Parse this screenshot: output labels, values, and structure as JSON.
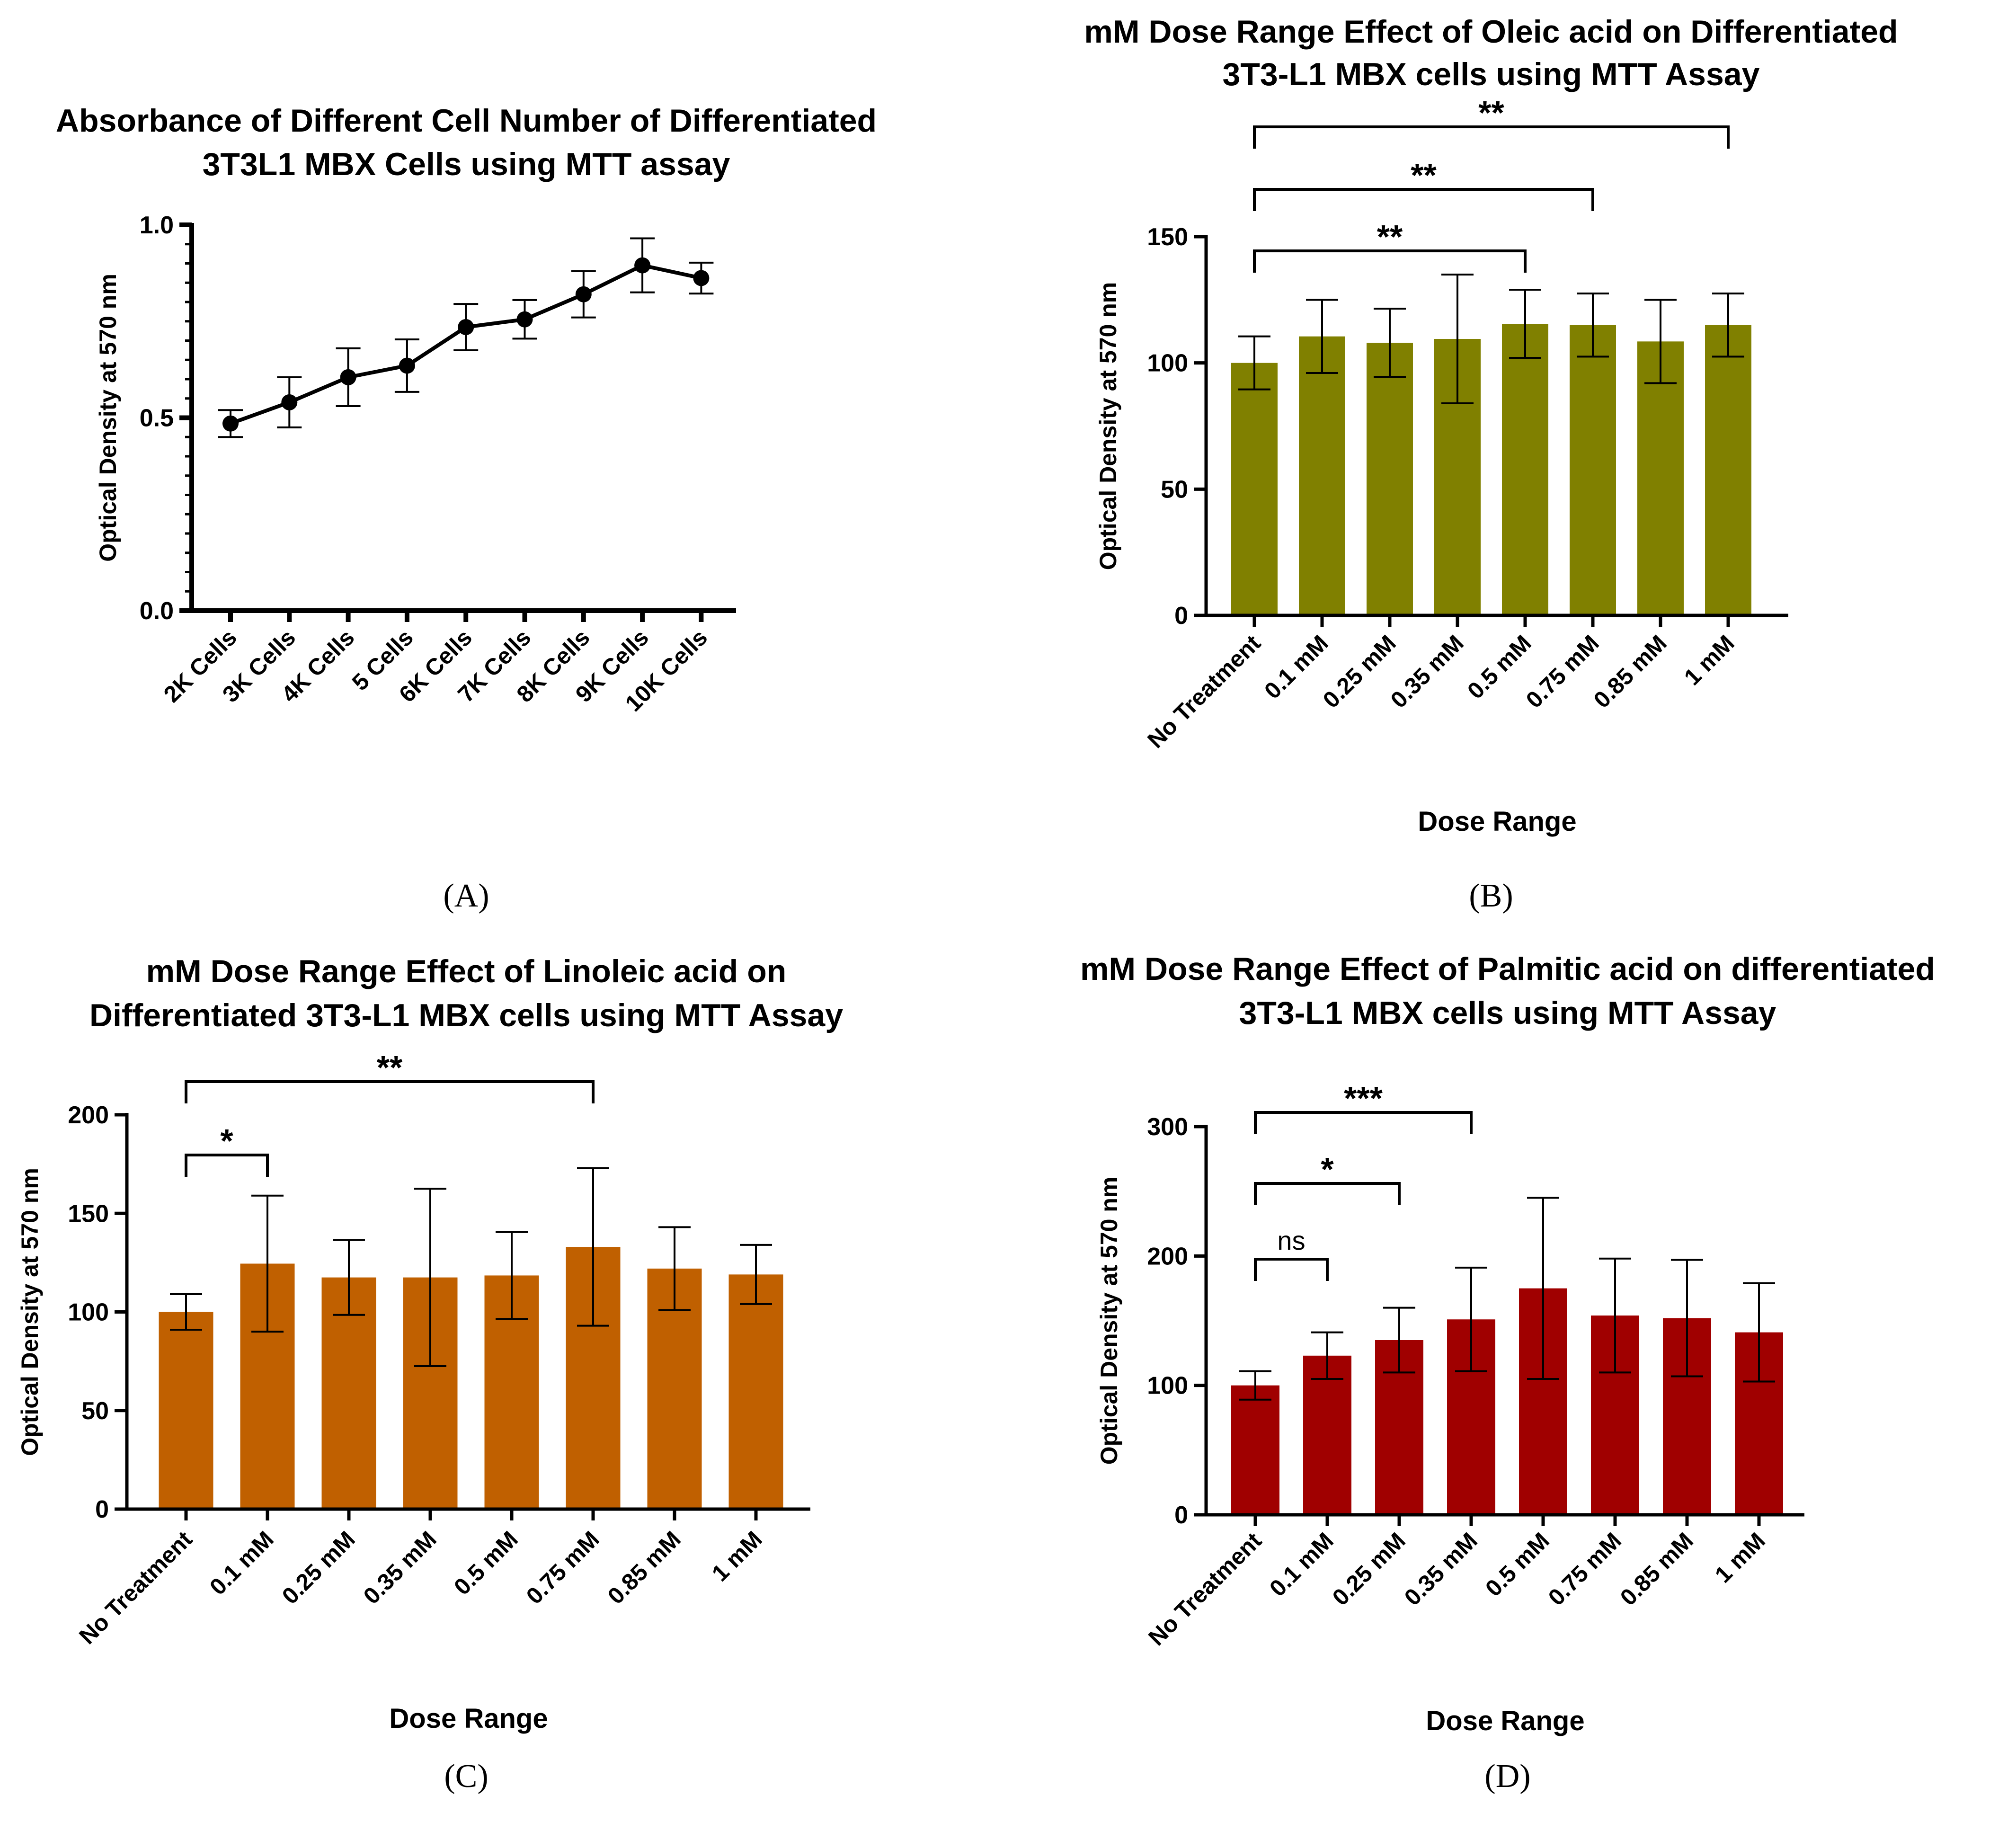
{
  "chart_data": [
    {
      "id": "A",
      "panel_label": "(A)",
      "type": "line",
      "title": [
        "Absorbance of Different Cell Number of Differentiated",
        "3T3L1 MBX Cells using MTT assay"
      ],
      "ylabel": "Optical Density at 570 nm",
      "xlabel": "",
      "ylim": [
        0,
        1.0
      ],
      "yticks": [
        {
          "v": 0,
          "label": "0.0"
        },
        {
          "v": 0.5,
          "label": "0.5"
        },
        {
          "v": 1.0,
          "label": "1.0"
        }
      ],
      "minor_ticks": true,
      "color": "#000000",
      "categories": [
        "2K Cells",
        "3K Cells",
        "4K Cells",
        "5 Cells",
        "6K Cells",
        "7K Cells",
        "8K Cells",
        "9K Cells",
        "10K Cells"
      ],
      "values": [
        0.485,
        0.54,
        0.605,
        0.635,
        0.735,
        0.755,
        0.82,
        0.895,
        0.862
      ],
      "errors": [
        0.035,
        0.065,
        0.075,
        0.068,
        0.06,
        0.05,
        0.06,
        0.07,
        0.04
      ],
      "brackets": []
    },
    {
      "id": "B",
      "panel_label": "(B)",
      "type": "bar",
      "title": [
        "mM Dose Range Effect of Oleic acid on Differentiated",
        "3T3-L1 MBX cells using MTT Assay"
      ],
      "ylabel": "Optical Density at 570 nm",
      "xlabel": "Dose Range",
      "ylim": [
        0,
        150
      ],
      "yticks": [
        {
          "v": 0,
          "label": "0"
        },
        {
          "v": 50,
          "label": "50"
        },
        {
          "v": 100,
          "label": "100"
        },
        {
          "v": 150,
          "label": "150"
        }
      ],
      "color": "#808000",
      "categories": [
        "No Treatment",
        "0.1 mM",
        "0.25 mM",
        "0.35 mM",
        "0.5 mM",
        "0.75 mM",
        "0.85 mM",
        "1 mM"
      ],
      "values": [
        100,
        110.5,
        108,
        109.5,
        115.5,
        115,
        108.5,
        115
      ],
      "errors": [
        10.5,
        14.5,
        13.5,
        25.5,
        13.5,
        12.5,
        16.5,
        12.5
      ],
      "brackets": [
        {
          "from": 0,
          "to": 4,
          "label": "**"
        },
        {
          "from": 0,
          "to": 5,
          "label": "**"
        },
        {
          "from": 0,
          "to": 7,
          "label": "**"
        }
      ]
    },
    {
      "id": "C",
      "panel_label": "(C)",
      "type": "bar",
      "title": [
        "mM Dose Range Effect of Linoleic acid on",
        "Differentiated 3T3-L1 MBX cells using MTT Assay"
      ],
      "ylabel": "Optical Density at 570 nm",
      "xlabel": "Dose Range",
      "ylim": [
        0,
        200
      ],
      "yticks": [
        {
          "v": 0,
          "label": "0"
        },
        {
          "v": 50,
          "label": "50"
        },
        {
          "v": 100,
          "label": "100"
        },
        {
          "v": 150,
          "label": "150"
        },
        {
          "v": 200,
          "label": "200"
        }
      ],
      "color": "#C06000",
      "categories": [
        "No Treatment",
        "0.1 mM",
        "0.25 mM",
        "0.35 mM",
        "0.5 mM",
        "0.75 mM",
        "0.85 mM",
        "1 mM"
      ],
      "values": [
        100,
        124.5,
        117.5,
        117.5,
        118.5,
        133,
        122,
        119
      ],
      "errors": [
        9,
        34.5,
        19,
        45,
        22,
        40,
        21,
        15
      ],
      "brackets": [
        {
          "from": 0,
          "to": 1,
          "label": "*"
        },
        {
          "from": 0,
          "to": 5,
          "label": "**"
        }
      ]
    },
    {
      "id": "D",
      "panel_label": "(D)",
      "type": "bar",
      "title": [
        "mM Dose Range Effect of Palmitic acid on differentiated",
        "3T3-L1 MBX cells using MTT Assay"
      ],
      "ylabel": "Optical Density at 570 nm",
      "xlabel": "Dose Range",
      "ylim": [
        0,
        300
      ],
      "yticks": [
        {
          "v": 0,
          "label": "0"
        },
        {
          "v": 100,
          "label": "100"
        },
        {
          "v": 200,
          "label": "200"
        },
        {
          "v": 300,
          "label": "300"
        }
      ],
      "color": "#A00000",
      "categories": [
        "No Treatment",
        "0.1 mM",
        "0.25 mM",
        "0.35 mM",
        "0.5 mM",
        "0.75 mM",
        "0.85 mM",
        "1 mM"
      ],
      "values": [
        100,
        123,
        135,
        151,
        175,
        154,
        152,
        141
      ],
      "errors": [
        11,
        18,
        25,
        40,
        70,
        44,
        45,
        38
      ],
      "brackets": [
        {
          "from": 0,
          "to": 1,
          "label": "ns"
        },
        {
          "from": 0,
          "to": 2,
          "label": "*"
        },
        {
          "from": 0,
          "to": 3,
          "label": "***"
        }
      ]
    }
  ]
}
